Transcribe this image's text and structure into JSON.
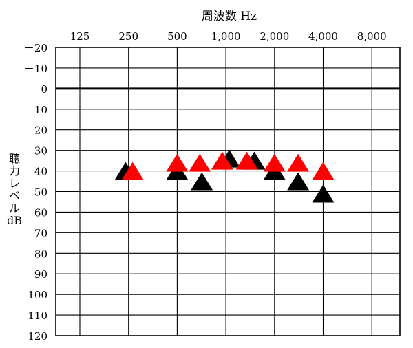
{
  "chart_data": {
    "type": "scatter",
    "title": "",
    "xlabel": "周波数 Hz",
    "ylabel_lines": [
      "聴",
      "力",
      "レ",
      "ベ",
      "ル",
      "dB"
    ],
    "x_scale": "log2",
    "x_ticks": [
      125,
      250,
      500,
      1000,
      2000,
      4000,
      8000
    ],
    "x_tick_labels": [
      "125",
      "250",
      "500",
      "1,000",
      "2,000",
      "4,000",
      "8,000"
    ],
    "y_ticks": [
      -20,
      -10,
      0,
      10,
      20,
      30,
      40,
      50,
      60,
      70,
      80,
      90,
      100,
      110,
      120
    ],
    "y_tick_labels": [
      "－20",
      "－10",
      "0",
      "10",
      "20",
      "30",
      "40",
      "50",
      "60",
      "70",
      "80",
      "90",
      "100",
      "110",
      "120"
    ],
    "ylim": [
      -20,
      120
    ],
    "y_inverted": true,
    "reference_line_y": 0,
    "grid": true,
    "marker": "triangle",
    "series": [
      {
        "color": "#000000",
        "points": [
          {
            "x": 240,
            "y": 40
          },
          {
            "x": 500,
            "y": 40
          },
          {
            "x": 710,
            "y": 45
          },
          {
            "x": 1050,
            "y": 34
          },
          {
            "x": 1500,
            "y": 35
          },
          {
            "x": 2000,
            "y": 40
          },
          {
            "x": 2800,
            "y": 45
          },
          {
            "x": 4000,
            "y": 51
          }
        ]
      },
      {
        "color": "#ff0000",
        "points": [
          {
            "x": 265,
            "y": 40
          },
          {
            "x": 500,
            "y": 36
          },
          {
            "x": 690,
            "y": 36
          },
          {
            "x": 950,
            "y": 35
          },
          {
            "x": 1350,
            "y": 35
          },
          {
            "x": 2000,
            "y": 36
          },
          {
            "x": 2800,
            "y": 36
          },
          {
            "x": 4000,
            "y": 40
          }
        ]
      }
    ]
  }
}
